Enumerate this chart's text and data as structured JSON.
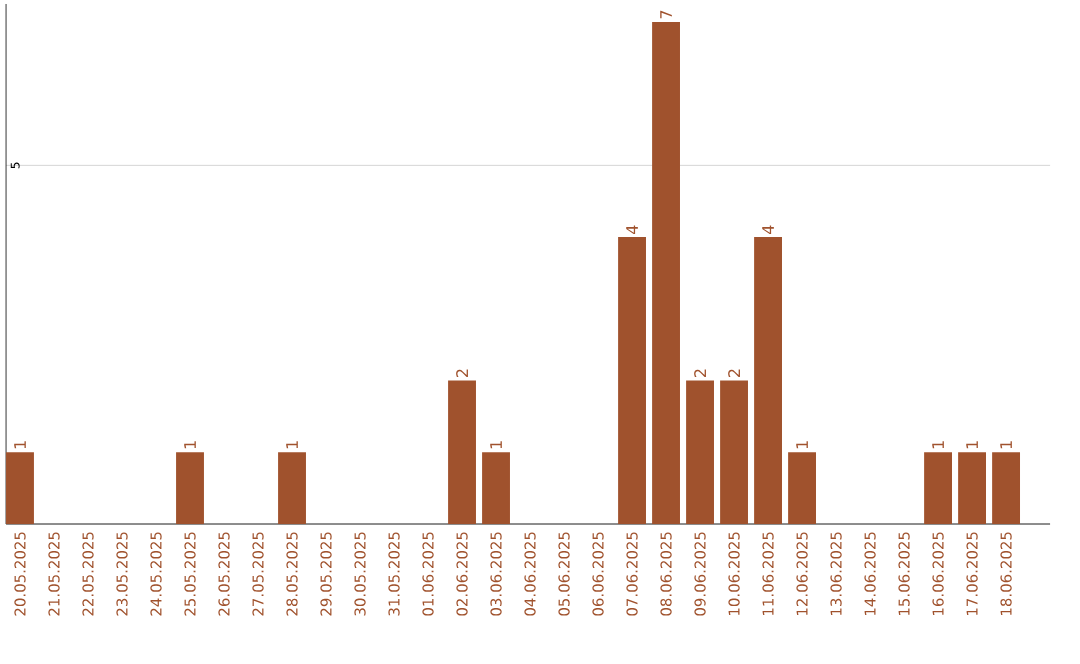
{
  "chart_data": {
    "type": "bar",
    "categories": [
      "20.05.2025",
      "21.05.2025",
      "22.05.2025",
      "23.05.2025",
      "24.05.2025",
      "25.05.2025",
      "26.05.2025",
      "27.05.2025",
      "28.05.2025",
      "29.05.2025",
      "30.05.2025",
      "31.05.2025",
      "01.06.2025",
      "02.06.2025",
      "03.06.2025",
      "04.06.2025",
      "05.06.2025",
      "06.06.2025",
      "07.06.2025",
      "08.06.2025",
      "09.06.2025",
      "10.06.2025",
      "11.06.2025",
      "12.06.2025",
      "13.06.2025",
      "14.06.2025",
      "15.06.2025",
      "16.06.2025",
      "17.06.2025",
      "18.06.2025"
    ],
    "values": [
      1,
      0,
      0,
      0,
      0,
      1,
      0,
      0,
      1,
      0,
      0,
      0,
      0,
      2,
      1,
      0,
      0,
      0,
      4,
      7,
      2,
      2,
      4,
      1,
      0,
      0,
      0,
      1,
      1,
      1
    ],
    "value_labels": [
      "1",
      null,
      null,
      null,
      null,
      "1",
      null,
      null,
      "1",
      null,
      null,
      null,
      null,
      "2",
      "1",
      null,
      null,
      null,
      "4",
      "7",
      "2",
      "2",
      "4",
      "1",
      null,
      null,
      null,
      "1",
      "1",
      "1"
    ],
    "color": "#a0522d",
    "ylim": [
      0,
      7.25
    ],
    "yticks": [
      {
        "value": 0,
        "label": null
      },
      5
    ],
    "grid": "y"
  }
}
